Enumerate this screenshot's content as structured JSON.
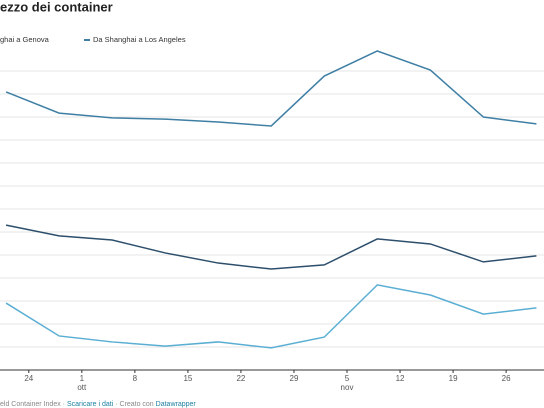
{
  "chart_data": {
    "type": "line",
    "title": "ezzo dei container",
    "legend_names": [
      "ghai a Genova",
      "Da Shanghai a Los Angeles"
    ],
    "x": [
      -3,
      4,
      11,
      18,
      25,
      32,
      39,
      46,
      53,
      60,
      67
    ],
    "xlim": [
      -3.8,
      68
    ],
    "xticks": [
      {
        "value": 0,
        "label": "24"
      },
      {
        "value": 7,
        "label": "1"
      },
      {
        "value": 14,
        "label": "8"
      },
      {
        "value": 21,
        "label": "15"
      },
      {
        "value": 28,
        "label": "22"
      },
      {
        "value": 35,
        "label": "29"
      },
      {
        "value": 42,
        "label": "5"
      },
      {
        "value": 49,
        "label": "12"
      },
      {
        "value": 56,
        "label": "19"
      },
      {
        "value": 63,
        "label": "26"
      }
    ],
    "month_labels": [
      {
        "value": 7,
        "label": "ott"
      },
      {
        "value": 42,
        "label": "nov"
      }
    ],
    "ylim": [
      0,
      13
    ],
    "ygrid": [
      1,
      2,
      3,
      4,
      5,
      6,
      7,
      8,
      9,
      10,
      11,
      12,
      13
    ],
    "series": [
      {
        "name": "Da Shanghai a Los Angeles",
        "color": "#3f7fa4",
        "values": [
          12.09,
          11.17,
          10.96,
          10.91,
          10.78,
          10.61,
          12.78,
          13.87,
          13.04,
          11.0,
          10.7
        ]
      },
      {
        "name": "ghai a Genova",
        "color": "#2d4f6c",
        "values": [
          6.3,
          5.83,
          5.65,
          5.09,
          4.65,
          4.39,
          4.57,
          5.7,
          5.48,
          4.7,
          4.96
        ]
      },
      {
        "color": "#5aaed3",
        "values": [
          2.91,
          1.48,
          1.22,
          1.04,
          1.22,
          0.96,
          1.43,
          3.7,
          3.26,
          2.43,
          2.7
        ]
      }
    ],
    "footer": [
      "eld Container Index · ",
      "Scaricare i dati",
      " · Creato con ",
      "Datawrapper"
    ]
  }
}
